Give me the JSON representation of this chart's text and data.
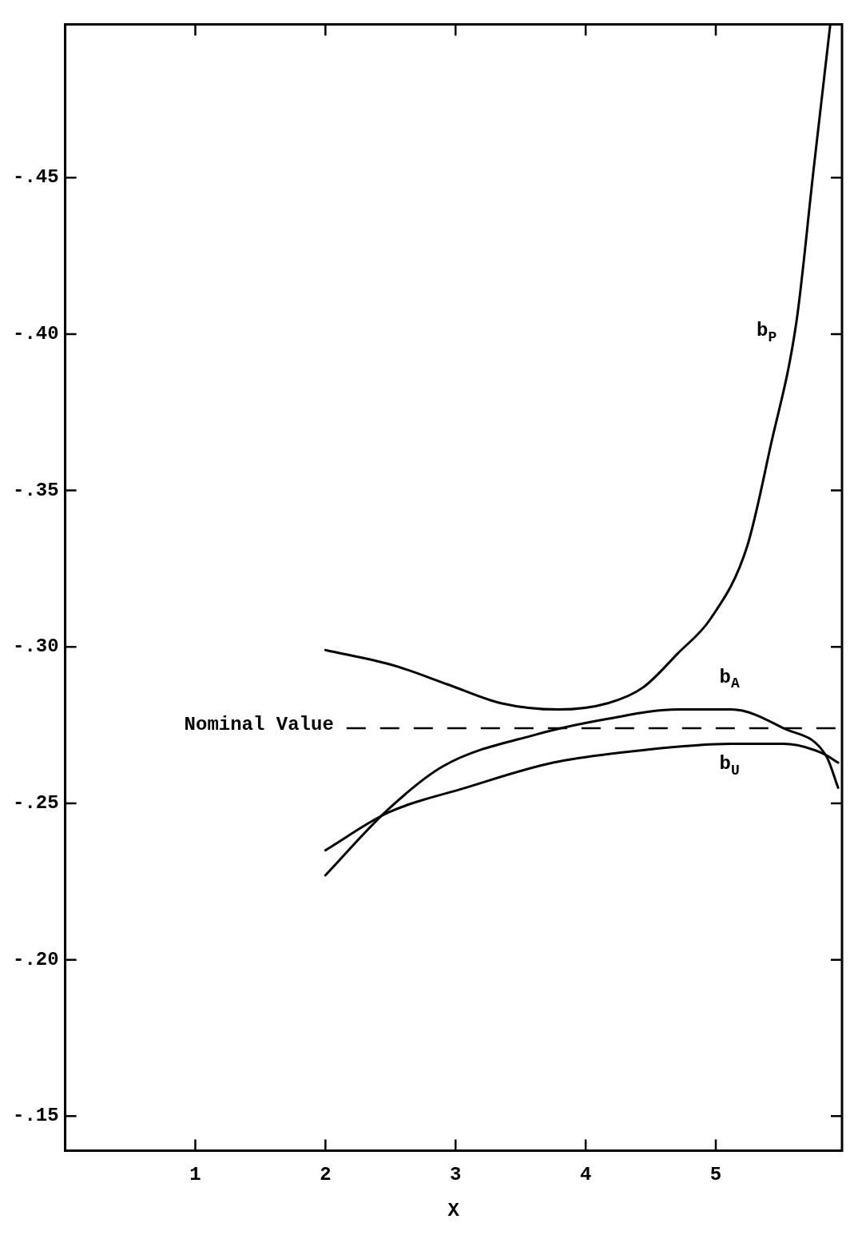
{
  "chart_data": {
    "type": "line",
    "xlabel": "X",
    "xlim": [
      0,
      5.97
    ],
    "ylim": [
      -0.139,
      -0.499
    ],
    "xticks": [
      1,
      2,
      3,
      4,
      5
    ],
    "yticks": [
      {
        "value": -0.15,
        "label": "-.15"
      },
      {
        "value": -0.2,
        "label": "-.20"
      },
      {
        "value": -0.25,
        "label": "-.25"
      },
      {
        "value": -0.3,
        "label": "-.30"
      },
      {
        "value": -0.35,
        "label": "-.35"
      },
      {
        "value": -0.4,
        "label": "-.40"
      },
      {
        "value": -0.45,
        "label": "-.45"
      }
    ],
    "grid": false,
    "legend": false,
    "marker": "none",
    "line_style": "solid",
    "series": [
      {
        "name": "b$_{P}$",
        "color": "#000000",
        "x": [
          2.0,
          2.53,
          2.94,
          3.35,
          3.79,
          4.17,
          4.44,
          4.71,
          4.96,
          5.24,
          5.42,
          5.62,
          5.75,
          5.88
        ],
        "values": [
          -0.299,
          -0.294,
          -0.288,
          -0.282,
          -0.28,
          -0.282,
          -0.287,
          -0.298,
          -0.309,
          -0.332,
          -0.364,
          -0.404,
          -0.452,
          -0.499
        ]
      },
      {
        "name": "b$_{A}$",
        "color": "#000000",
        "x": [
          2.0,
          2.48,
          2.91,
          3.62,
          4.17,
          4.71,
          5.12,
          5.52,
          5.85,
          5.94
        ],
        "values": [
          -0.227,
          -0.248,
          -0.262,
          -0.272,
          -0.277,
          -0.28,
          -0.28,
          -0.274,
          -0.265,
          -0.255
        ]
      },
      {
        "name": "b$_{U}$",
        "color": "#000000",
        "x": [
          2.0,
          2.48,
          3.08,
          3.75,
          4.44,
          5.12,
          5.52,
          5.82,
          5.94
        ],
        "values": [
          -0.235,
          -0.247,
          -0.255,
          -0.263,
          -0.267,
          -0.269,
          -0.269,
          -0.266,
          -0.263
        ]
      }
    ],
    "ref_lines": [
      {
        "axis": "y",
        "value": -0.274,
        "label": "Nominal Value",
        "line_style": "dashed",
        "color": "#000000"
      }
    ]
  }
}
